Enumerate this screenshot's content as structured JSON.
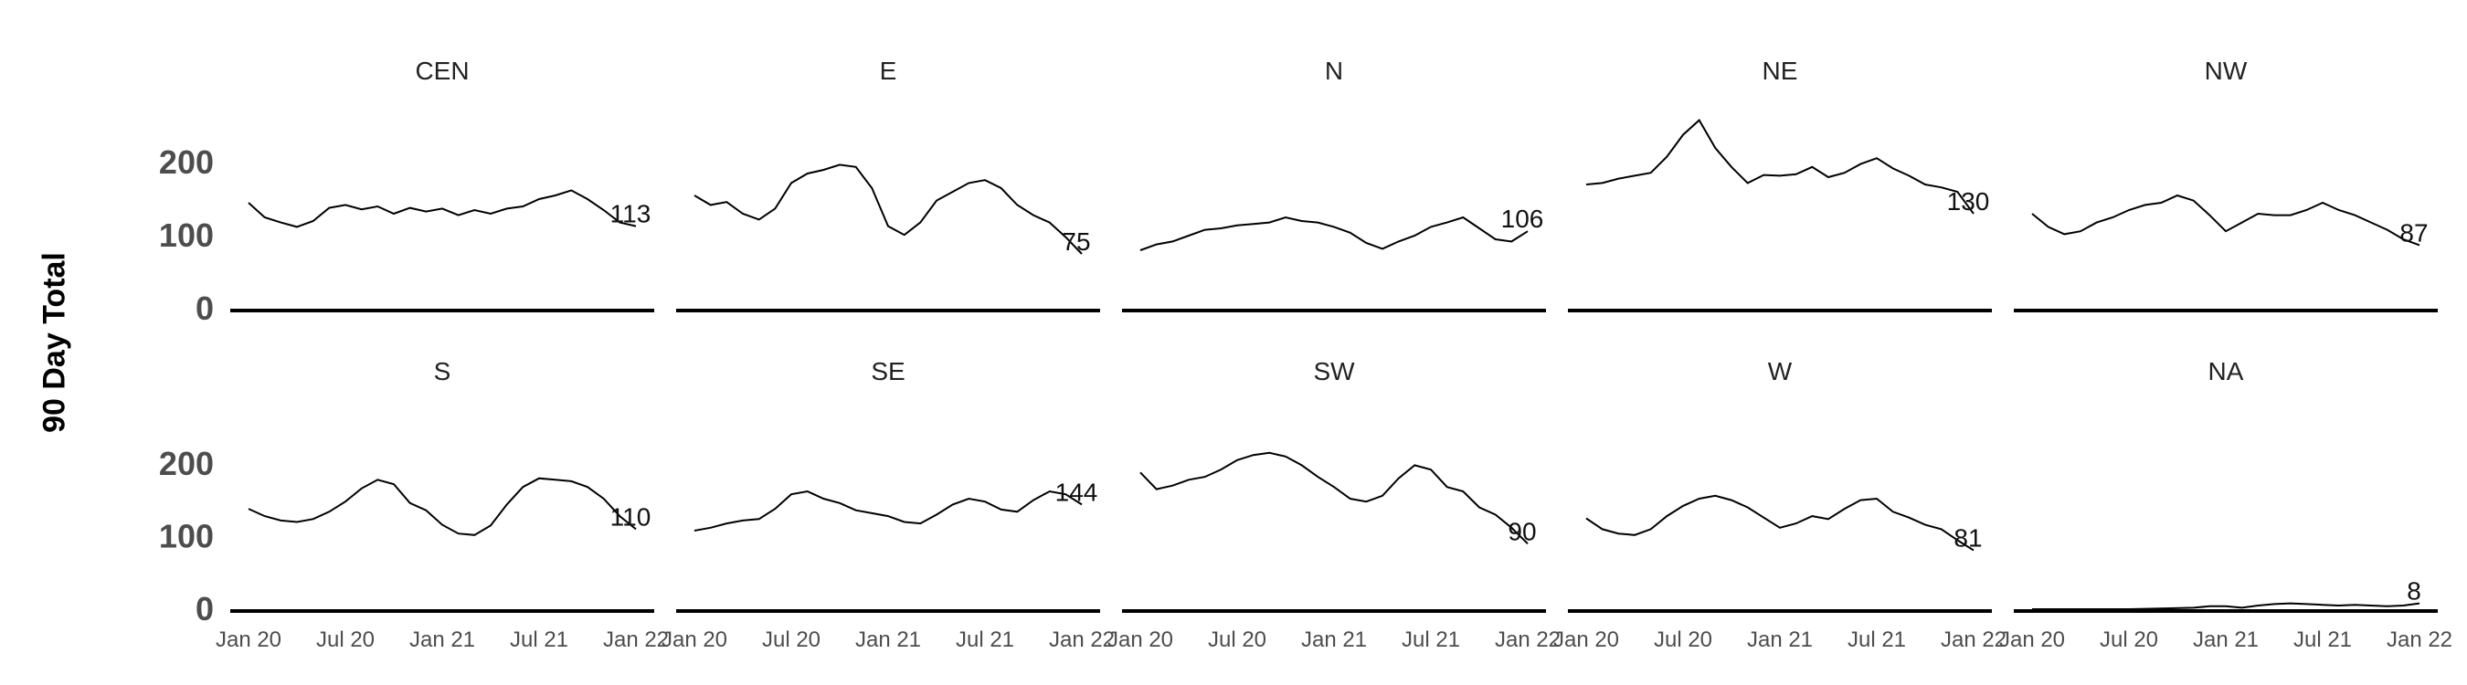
{
  "chart_data": {
    "type": "line",
    "ylabel": "90 Day Total",
    "ylim": [
      0,
      260
    ],
    "yticks": [
      0,
      100,
      200
    ],
    "x_tick_labels": [
      "Jan 20",
      "Jul 20",
      "Jan 21",
      "Jul 21",
      "Jan 22"
    ],
    "x_tick_positions": [
      0,
      6,
      12,
      18,
      24
    ],
    "x_range": [
      0,
      24
    ],
    "grid": false,
    "line_color": "#000000",
    "panels": [
      {
        "name": "CEN",
        "end_label": "113",
        "points": [
          [
            0,
            145
          ],
          [
            1,
            125
          ],
          [
            2,
            118
          ],
          [
            3,
            112
          ],
          [
            4,
            120
          ],
          [
            5,
            138
          ],
          [
            6,
            142
          ],
          [
            7,
            136
          ],
          [
            8,
            140
          ],
          [
            9,
            130
          ],
          [
            10,
            138
          ],
          [
            11,
            133
          ],
          [
            12,
            137
          ],
          [
            13,
            128
          ],
          [
            14,
            135
          ],
          [
            15,
            130
          ],
          [
            16,
            137
          ],
          [
            17,
            140
          ],
          [
            18,
            150
          ],
          [
            19,
            155
          ],
          [
            20,
            162
          ],
          [
            21,
            150
          ],
          [
            22,
            135
          ],
          [
            23,
            118
          ],
          [
            24,
            113
          ]
        ]
      },
      {
        "name": "E",
        "end_label": "75",
        "points": [
          [
            0,
            155
          ],
          [
            1,
            142
          ],
          [
            2,
            146
          ],
          [
            3,
            130
          ],
          [
            4,
            122
          ],
          [
            5,
            137
          ],
          [
            6,
            172
          ],
          [
            7,
            185
          ],
          [
            8,
            190
          ],
          [
            9,
            197
          ],
          [
            10,
            194
          ],
          [
            11,
            165
          ],
          [
            12,
            113
          ],
          [
            13,
            101
          ],
          [
            14,
            118
          ],
          [
            15,
            148
          ],
          [
            16,
            160
          ],
          [
            17,
            172
          ],
          [
            18,
            176
          ],
          [
            19,
            165
          ],
          [
            20,
            142
          ],
          [
            21,
            128
          ],
          [
            22,
            118
          ],
          [
            23,
            98
          ],
          [
            24,
            75
          ]
        ]
      },
      {
        "name": "N",
        "end_label": "106",
        "points": [
          [
            0,
            80
          ],
          [
            1,
            88
          ],
          [
            2,
            92
          ],
          [
            3,
            100
          ],
          [
            4,
            108
          ],
          [
            5,
            110
          ],
          [
            6,
            114
          ],
          [
            7,
            116
          ],
          [
            8,
            118
          ],
          [
            9,
            125
          ],
          [
            10,
            120
          ],
          [
            11,
            118
          ],
          [
            12,
            112
          ],
          [
            13,
            104
          ],
          [
            14,
            90
          ],
          [
            15,
            82
          ],
          [
            16,
            92
          ],
          [
            17,
            100
          ],
          [
            18,
            112
          ],
          [
            19,
            118
          ],
          [
            20,
            125
          ],
          [
            21,
            110
          ],
          [
            22,
            95
          ],
          [
            23,
            92
          ],
          [
            24,
            106
          ]
        ]
      },
      {
        "name": "NE",
        "end_label": "130",
        "points": [
          [
            0,
            170
          ],
          [
            1,
            172
          ],
          [
            2,
            178
          ],
          [
            3,
            182
          ],
          [
            4,
            186
          ],
          [
            5,
            208
          ],
          [
            6,
            238
          ],
          [
            7,
            258
          ],
          [
            8,
            220
          ],
          [
            9,
            194
          ],
          [
            10,
            172
          ],
          [
            11,
            183
          ],
          [
            12,
            182
          ],
          [
            13,
            184
          ],
          [
            14,
            194
          ],
          [
            15,
            180
          ],
          [
            16,
            186
          ],
          [
            17,
            198
          ],
          [
            18,
            206
          ],
          [
            19,
            192
          ],
          [
            20,
            182
          ],
          [
            21,
            170
          ],
          [
            22,
            166
          ],
          [
            23,
            160
          ],
          [
            24,
            130
          ]
        ]
      },
      {
        "name": "NW",
        "end_label": "87",
        "points": [
          [
            0,
            130
          ],
          [
            1,
            112
          ],
          [
            2,
            102
          ],
          [
            3,
            106
          ],
          [
            4,
            118
          ],
          [
            5,
            125
          ],
          [
            6,
            135
          ],
          [
            7,
            142
          ],
          [
            8,
            145
          ],
          [
            9,
            155
          ],
          [
            10,
            148
          ],
          [
            11,
            128
          ],
          [
            12,
            106
          ],
          [
            13,
            118
          ],
          [
            14,
            130
          ],
          [
            15,
            128
          ],
          [
            16,
            128
          ],
          [
            17,
            135
          ],
          [
            18,
            145
          ],
          [
            19,
            135
          ],
          [
            20,
            128
          ],
          [
            21,
            118
          ],
          [
            22,
            108
          ],
          [
            23,
            95
          ],
          [
            24,
            87
          ]
        ]
      },
      {
        "name": "S",
        "end_label": "110",
        "points": [
          [
            0,
            138
          ],
          [
            1,
            128
          ],
          [
            2,
            122
          ],
          [
            3,
            120
          ],
          [
            4,
            124
          ],
          [
            5,
            134
          ],
          [
            6,
            148
          ],
          [
            7,
            166
          ],
          [
            8,
            178
          ],
          [
            9,
            172
          ],
          [
            10,
            146
          ],
          [
            11,
            136
          ],
          [
            12,
            116
          ],
          [
            13,
            104
          ],
          [
            14,
            102
          ],
          [
            15,
            115
          ],
          [
            16,
            144
          ],
          [
            17,
            168
          ],
          [
            18,
            180
          ],
          [
            19,
            178
          ],
          [
            20,
            176
          ],
          [
            21,
            168
          ],
          [
            22,
            152
          ],
          [
            23,
            128
          ],
          [
            24,
            110
          ]
        ]
      },
      {
        "name": "SE",
        "end_label": "144",
        "points": [
          [
            0,
            108
          ],
          [
            1,
            112
          ],
          [
            2,
            118
          ],
          [
            3,
            122
          ],
          [
            4,
            124
          ],
          [
            5,
            138
          ],
          [
            6,
            158
          ],
          [
            7,
            162
          ],
          [
            8,
            152
          ],
          [
            9,
            146
          ],
          [
            10,
            136
          ],
          [
            11,
            132
          ],
          [
            12,
            128
          ],
          [
            13,
            120
          ],
          [
            14,
            118
          ],
          [
            15,
            130
          ],
          [
            16,
            144
          ],
          [
            17,
            152
          ],
          [
            18,
            148
          ],
          [
            19,
            137
          ],
          [
            20,
            134
          ],
          [
            21,
            150
          ],
          [
            22,
            162
          ],
          [
            23,
            158
          ],
          [
            24,
            144
          ]
        ]
      },
      {
        "name": "SW",
        "end_label": "90",
        "points": [
          [
            0,
            188
          ],
          [
            1,
            165
          ],
          [
            2,
            170
          ],
          [
            3,
            178
          ],
          [
            4,
            182
          ],
          [
            5,
            192
          ],
          [
            6,
            205
          ],
          [
            7,
            212
          ],
          [
            8,
            215
          ],
          [
            9,
            210
          ],
          [
            10,
            198
          ],
          [
            11,
            182
          ],
          [
            12,
            168
          ],
          [
            13,
            152
          ],
          [
            14,
            148
          ],
          [
            15,
            156
          ],
          [
            16,
            180
          ],
          [
            17,
            198
          ],
          [
            18,
            192
          ],
          [
            19,
            168
          ],
          [
            20,
            162
          ],
          [
            21,
            140
          ],
          [
            22,
            130
          ],
          [
            23,
            112
          ],
          [
            24,
            90
          ]
        ]
      },
      {
        "name": "W",
        "end_label": "81",
        "points": [
          [
            0,
            125
          ],
          [
            1,
            110
          ],
          [
            2,
            104
          ],
          [
            3,
            102
          ],
          [
            4,
            110
          ],
          [
            5,
            128
          ],
          [
            6,
            142
          ],
          [
            7,
            152
          ],
          [
            8,
            156
          ],
          [
            9,
            150
          ],
          [
            10,
            140
          ],
          [
            11,
            126
          ],
          [
            12,
            112
          ],
          [
            13,
            118
          ],
          [
            14,
            128
          ],
          [
            15,
            124
          ],
          [
            16,
            138
          ],
          [
            17,
            150
          ],
          [
            18,
            152
          ],
          [
            19,
            134
          ],
          [
            20,
            126
          ],
          [
            21,
            116
          ],
          [
            22,
            110
          ],
          [
            23,
            95
          ],
          [
            24,
            81
          ]
        ]
      },
      {
        "name": "NA",
        "end_label": "8",
        "points": [
          [
            0,
            0
          ],
          [
            3,
            0
          ],
          [
            6,
            0
          ],
          [
            8,
            1
          ],
          [
            10,
            2
          ],
          [
            11,
            4
          ],
          [
            12,
            4
          ],
          [
            13,
            2
          ],
          [
            14,
            5
          ],
          [
            15,
            7
          ],
          [
            16,
            8
          ],
          [
            17,
            7
          ],
          [
            18,
            6
          ],
          [
            19,
            5
          ],
          [
            20,
            6
          ],
          [
            21,
            5
          ],
          [
            22,
            4
          ],
          [
            23,
            5
          ],
          [
            24,
            8
          ]
        ]
      }
    ]
  }
}
